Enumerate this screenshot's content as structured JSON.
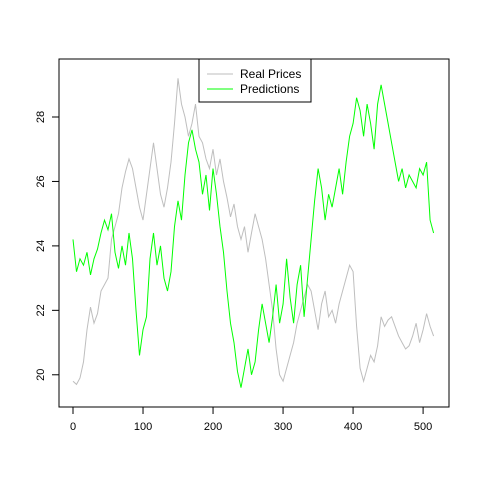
{
  "chart_data": {
    "type": "line",
    "xlim": [
      -20,
      537
    ],
    "ylim": [
      19.0,
      29.8
    ],
    "x_ticks": [
      0,
      100,
      200,
      300,
      400,
      500
    ],
    "y_ticks": [
      20,
      22,
      24,
      26,
      28
    ],
    "legend": {
      "placement": "top-center"
    },
    "series": [
      {
        "name": "Real Prices",
        "color": "#bebebe",
        "points": [
          [
            0,
            19.8
          ],
          [
            5,
            19.7
          ],
          [
            10,
            19.9
          ],
          [
            15,
            20.4
          ],
          [
            20,
            21.4
          ],
          [
            25,
            22.1
          ],
          [
            30,
            21.6
          ],
          [
            35,
            21.9
          ],
          [
            40,
            22.6
          ],
          [
            45,
            22.8
          ],
          [
            50,
            23.0
          ],
          [
            55,
            24.2
          ],
          [
            60,
            24.6
          ],
          [
            65,
            25.0
          ],
          [
            70,
            25.8
          ],
          [
            75,
            26.3
          ],
          [
            80,
            26.7
          ],
          [
            85,
            26.4
          ],
          [
            90,
            25.8
          ],
          [
            95,
            25.2
          ],
          [
            100,
            24.8
          ],
          [
            105,
            25.6
          ],
          [
            110,
            26.4
          ],
          [
            115,
            27.2
          ],
          [
            120,
            26.4
          ],
          [
            125,
            25.6
          ],
          [
            130,
            25.2
          ],
          [
            135,
            25.8
          ],
          [
            140,
            26.6
          ],
          [
            145,
            27.8
          ],
          [
            150,
            29.2
          ],
          [
            155,
            28.4
          ],
          [
            160,
            28.0
          ],
          [
            165,
            27.4
          ],
          [
            170,
            27.8
          ],
          [
            175,
            28.4
          ],
          [
            180,
            27.4
          ],
          [
            185,
            27.2
          ],
          [
            190,
            26.7
          ],
          [
            195,
            26.4
          ],
          [
            200,
            27.0
          ],
          [
            205,
            26.2
          ],
          [
            210,
            26.7
          ],
          [
            215,
            26.0
          ],
          [
            220,
            25.5
          ],
          [
            225,
            24.9
          ],
          [
            230,
            25.3
          ],
          [
            235,
            24.6
          ],
          [
            240,
            24.2
          ],
          [
            245,
            24.6
          ],
          [
            250,
            23.8
          ],
          [
            255,
            24.4
          ],
          [
            260,
            25.0
          ],
          [
            265,
            24.6
          ],
          [
            270,
            24.2
          ],
          [
            275,
            23.6
          ],
          [
            280,
            22.8
          ],
          [
            285,
            22.0
          ],
          [
            290,
            20.8
          ],
          [
            295,
            20.0
          ],
          [
            300,
            19.8
          ],
          [
            305,
            20.2
          ],
          [
            310,
            20.6
          ],
          [
            315,
            21.0
          ],
          [
            320,
            21.6
          ],
          [
            325,
            22.0
          ],
          [
            330,
            22.4
          ],
          [
            335,
            22.8
          ],
          [
            340,
            22.6
          ],
          [
            345,
            22.0
          ],
          [
            350,
            21.4
          ],
          [
            355,
            22.2
          ],
          [
            360,
            22.6
          ],
          [
            365,
            21.8
          ],
          [
            370,
            22.0
          ],
          [
            375,
            21.6
          ],
          [
            380,
            22.2
          ],
          [
            385,
            22.6
          ],
          [
            390,
            23.0
          ],
          [
            395,
            23.4
          ],
          [
            400,
            23.2
          ],
          [
            405,
            21.5
          ],
          [
            410,
            20.2
          ],
          [
            415,
            19.8
          ],
          [
            420,
            20.2
          ],
          [
            425,
            20.6
          ],
          [
            430,
            20.4
          ],
          [
            435,
            20.9
          ],
          [
            440,
            21.8
          ],
          [
            445,
            21.5
          ],
          [
            450,
            21.7
          ],
          [
            455,
            21.8
          ],
          [
            460,
            21.5
          ],
          [
            465,
            21.2
          ],
          [
            470,
            21.0
          ],
          [
            475,
            20.8
          ],
          [
            480,
            20.9
          ],
          [
            485,
            21.2
          ],
          [
            490,
            21.6
          ],
          [
            495,
            21.0
          ],
          [
            500,
            21.4
          ],
          [
            505,
            21.9
          ],
          [
            510,
            21.5
          ],
          [
            515,
            21.2
          ]
        ]
      },
      {
        "name": "Predictions",
        "color": "#00ff00",
        "points": [
          [
            0,
            24.2
          ],
          [
            5,
            23.2
          ],
          [
            10,
            23.6
          ],
          [
            15,
            23.4
          ],
          [
            20,
            23.8
          ],
          [
            25,
            23.1
          ],
          [
            30,
            23.6
          ],
          [
            35,
            23.9
          ],
          [
            40,
            24.4
          ],
          [
            45,
            24.8
          ],
          [
            50,
            24.5
          ],
          [
            55,
            25.0
          ],
          [
            60,
            23.8
          ],
          [
            65,
            23.3
          ],
          [
            70,
            24.0
          ],
          [
            75,
            23.4
          ],
          [
            80,
            24.4
          ],
          [
            85,
            23.6
          ],
          [
            90,
            22.0
          ],
          [
            95,
            20.6
          ],
          [
            100,
            21.4
          ],
          [
            105,
            21.8
          ],
          [
            110,
            23.6
          ],
          [
            115,
            24.4
          ],
          [
            120,
            23.4
          ],
          [
            125,
            24.0
          ],
          [
            130,
            23.0
          ],
          [
            135,
            22.6
          ],
          [
            140,
            23.2
          ],
          [
            145,
            24.6
          ],
          [
            150,
            25.4
          ],
          [
            155,
            24.8
          ],
          [
            160,
            26.2
          ],
          [
            165,
            27.2
          ],
          [
            170,
            27.6
          ],
          [
            175,
            27.0
          ],
          [
            180,
            26.6
          ],
          [
            185,
            25.6
          ],
          [
            190,
            26.2
          ],
          [
            195,
            25.1
          ],
          [
            200,
            26.4
          ],
          [
            205,
            25.6
          ],
          [
            210,
            24.6
          ],
          [
            215,
            23.8
          ],
          [
            220,
            22.6
          ],
          [
            225,
            21.6
          ],
          [
            230,
            21.0
          ],
          [
            235,
            20.1
          ],
          [
            240,
            19.6
          ],
          [
            245,
            20.2
          ],
          [
            250,
            20.8
          ],
          [
            255,
            20.0
          ],
          [
            260,
            20.4
          ],
          [
            265,
            21.4
          ],
          [
            270,
            22.2
          ],
          [
            275,
            21.6
          ],
          [
            280,
            21.0
          ],
          [
            285,
            21.8
          ],
          [
            290,
            22.8
          ],
          [
            295,
            21.6
          ],
          [
            300,
            22.2
          ],
          [
            305,
            23.6
          ],
          [
            310,
            22.4
          ],
          [
            315,
            21.6
          ],
          [
            320,
            22.8
          ],
          [
            325,
            23.4
          ],
          [
            330,
            21.8
          ],
          [
            335,
            23.0
          ],
          [
            340,
            24.2
          ],
          [
            345,
            25.4
          ],
          [
            350,
            26.4
          ],
          [
            355,
            25.8
          ],
          [
            360,
            24.8
          ],
          [
            365,
            25.6
          ],
          [
            370,
            25.2
          ],
          [
            375,
            25.8
          ],
          [
            380,
            26.4
          ],
          [
            385,
            25.6
          ],
          [
            390,
            26.6
          ],
          [
            395,
            27.4
          ],
          [
            400,
            27.8
          ],
          [
            405,
            28.6
          ],
          [
            410,
            28.2
          ],
          [
            415,
            27.4
          ],
          [
            420,
            28.4
          ],
          [
            425,
            27.8
          ],
          [
            430,
            27.0
          ],
          [
            435,
            28.4
          ],
          [
            440,
            29.0
          ],
          [
            445,
            28.4
          ],
          [
            450,
            27.8
          ],
          [
            455,
            27.2
          ],
          [
            460,
            26.6
          ],
          [
            465,
            26.0
          ],
          [
            470,
            26.4
          ],
          [
            475,
            25.8
          ],
          [
            480,
            26.2
          ],
          [
            485,
            26.0
          ],
          [
            490,
            25.8
          ],
          [
            495,
            26.4
          ],
          [
            500,
            26.2
          ],
          [
            505,
            26.6
          ],
          [
            510,
            24.8
          ],
          [
            515,
            24.4
          ]
        ]
      }
    ]
  }
}
